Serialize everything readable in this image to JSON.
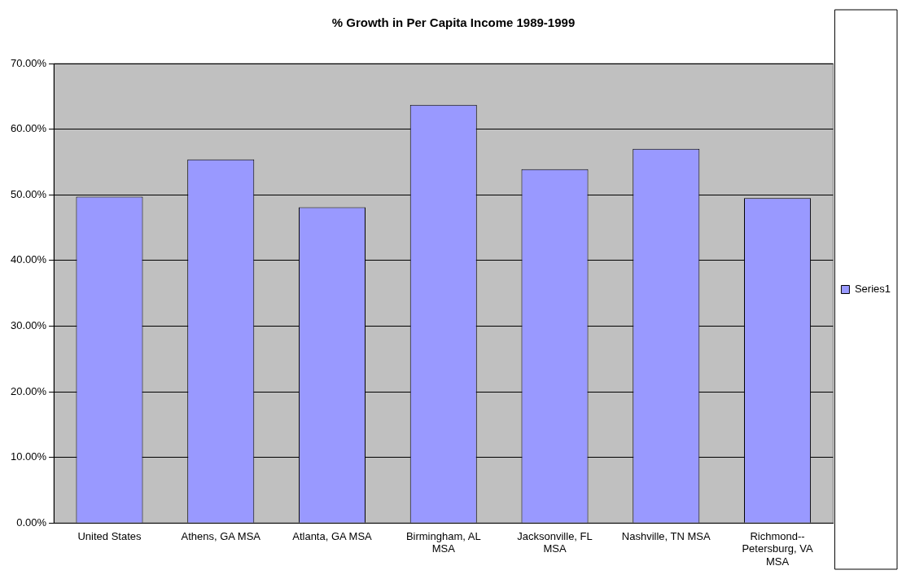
{
  "chart_data": {
    "type": "bar",
    "title": "% Growth in Per Capita Income 1989-1999",
    "categories": [
      "United States",
      "Athens, GA MSA",
      "Atlanta, GA MSA",
      "Birmingham, AL MSA",
      "Jacksonville, FL MSA",
      "Nashville, TN MSA",
      "Richmond--Petersburg, VA MSA"
    ],
    "series": [
      {
        "name": "Series1",
        "color": "#9999ff",
        "values": [
          49.7,
          55.4,
          48.1,
          63.7,
          53.9,
          57.0,
          49.5
        ]
      }
    ],
    "ylim": [
      0,
      70
    ],
    "yticks": [
      {
        "value": 0,
        "label": "0.00%"
      },
      {
        "value": 10,
        "label": "10.00%"
      },
      {
        "value": 20,
        "label": "20.00%"
      },
      {
        "value": 30,
        "label": "30.00%"
      },
      {
        "value": 40,
        "label": "40.00%"
      },
      {
        "value": 50,
        "label": "50.00%"
      },
      {
        "value": 60,
        "label": "60.00%"
      },
      {
        "value": 70,
        "label": "70.00%"
      }
    ],
    "grid": "y",
    "legend": "right"
  }
}
